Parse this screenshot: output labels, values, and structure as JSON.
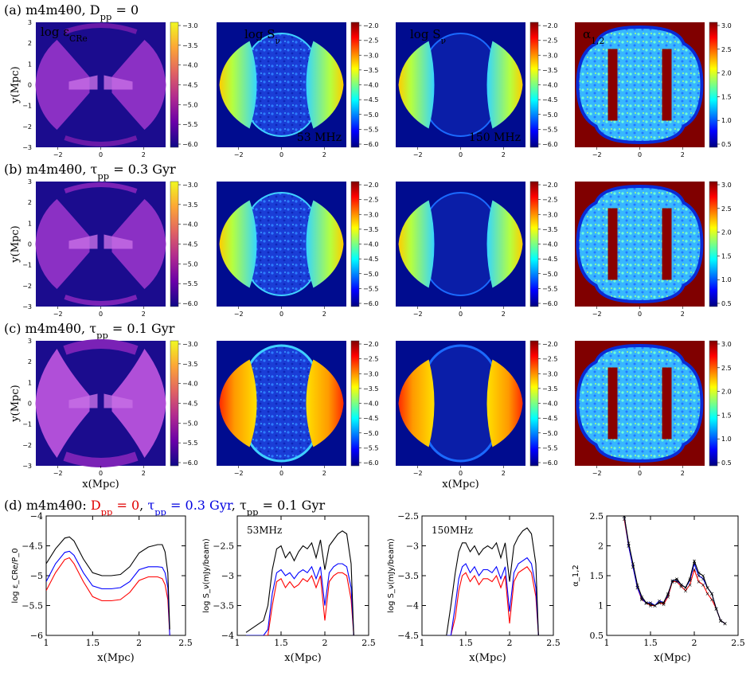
{
  "rows": [
    {
      "label": "(a) m4m4θ0, D",
      "sub": "pp",
      "tail": " = 0"
    },
    {
      "label": "(b) m4m4θ0, τ",
      "sub": "pp",
      "tail": " = 0.3 Gyr"
    },
    {
      "label": "(c) m4m4θ0, τ",
      "sub": "pp",
      "tail": " = 0.1 Gyr"
    }
  ],
  "panel_titles": {
    "eps": "log ε",
    "eps_sub": "CRe",
    "s53": "log S",
    "s150": "log S",
    "s_sub": "ν",
    "alpha": "α",
    "alpha_sub": "1,2",
    "freq53": "53 MHz",
    "freq150": "150 MHz"
  },
  "map_axis": {
    "ylabel": "y(Mpc)",
    "xlabel": "x(Mpc)",
    "xticks": [
      "−2",
      "0",
      "2"
    ],
    "yticks": [
      "3",
      "2",
      "1",
      "0",
      "−1",
      "−2",
      "−3"
    ]
  },
  "colorbars": {
    "eps": [
      "−3.0",
      "−3.5",
      "−4.0",
      "−4.5",
      "−5.0",
      "−5.5",
      "−6.0"
    ],
    "snu": [
      "−2.0",
      "−2.5",
      "−3.0",
      "−3.5",
      "−4.0",
      "−4.5",
      "−5.0",
      "−5.5",
      "−6.0"
    ],
    "alpha": [
      "3.0",
      "2.5",
      "2.0",
      "1.5",
      "1.0",
      "0.5"
    ],
    "colors": {
      "plasma": [
        "#f0f921",
        "#fca636",
        "#e16462",
        "#b12a90",
        "#6a00a8",
        "#0d0887"
      ],
      "jet": [
        "#7f0000",
        "#ff0000",
        "#ffff00",
        "#00ffff",
        "#0000ff",
        "#00007f"
      ]
    }
  },
  "row_d": {
    "prefix": "(d) m4m4θ0: ",
    "red": "D",
    "red_sub": "pp",
    "red_tail": " = 0",
    "blue": "τ",
    "blue_sub": "pp",
    "blue_tail": " = 0.3 Gyr",
    "black": "τ",
    "black_sub": "pp",
    "black_tail": " = 0.1 Gyr",
    "sep": ", "
  },
  "chart_data": [
    {
      "type": "line",
      "title": "",
      "xlabel": "x(Mpc)",
      "ylabel": "log ε_CRe/P_0",
      "xlim": [
        1,
        2.5
      ],
      "ylim": [
        -6,
        -4
      ],
      "xticks": [
        "1",
        "1.5",
        "2",
        "2.5"
      ],
      "yticks": [
        "−4",
        "−4.5",
        "−5",
        "−5.5",
        "−6"
      ],
      "x": [
        1.0,
        1.1,
        1.2,
        1.25,
        1.3,
        1.4,
        1.5,
        1.6,
        1.7,
        1.8,
        1.9,
        2.0,
        2.1,
        2.2,
        2.25,
        2.28,
        2.31,
        2.33
      ],
      "series": [
        {
          "name": "τpp = 0.1 Gyr",
          "color": "#000000",
          "values": [
            -4.8,
            -4.55,
            -4.37,
            -4.35,
            -4.42,
            -4.72,
            -4.95,
            -5.0,
            -5.0,
            -4.98,
            -4.85,
            -4.62,
            -4.52,
            -4.48,
            -4.48,
            -4.6,
            -4.95,
            -5.9
          ]
        },
        {
          "name": "τpp = 0.3 Gyr",
          "color": "#0000ff",
          "values": [
            -5.1,
            -4.8,
            -4.61,
            -4.59,
            -4.66,
            -4.95,
            -5.17,
            -5.22,
            -5.22,
            -5.2,
            -5.1,
            -4.9,
            -4.85,
            -4.85,
            -4.86,
            -4.95,
            -5.2,
            -6.0
          ]
        },
        {
          "name": "Dpp = 0",
          "color": "#ff0000",
          "values": [
            -5.25,
            -4.95,
            -4.73,
            -4.7,
            -4.8,
            -5.1,
            -5.35,
            -5.42,
            -5.42,
            -5.4,
            -5.28,
            -5.08,
            -5.02,
            -5.02,
            -5.05,
            -5.15,
            -5.4,
            -6.0
          ]
        }
      ]
    },
    {
      "type": "line",
      "title": "53MHz",
      "xlabel": "x(Mpc)",
      "ylabel": "log S_ν(mJy/beam)",
      "xlim": [
        1,
        2.5
      ],
      "ylim": [
        -4,
        -2
      ],
      "xticks": [
        "1",
        "1.5",
        "2",
        "2.5"
      ],
      "yticks": [
        "−2.5",
        "−3",
        "−3.5",
        "−4"
      ],
      "x": [
        1.1,
        1.2,
        1.3,
        1.35,
        1.4,
        1.45,
        1.5,
        1.55,
        1.6,
        1.65,
        1.7,
        1.75,
        1.8,
        1.85,
        1.9,
        1.95,
        2.0,
        2.05,
        2.1,
        2.15,
        2.2,
        2.25,
        2.3,
        2.33
      ],
      "series": [
        {
          "name": "τpp = 0.1 Gyr",
          "color": "#000000",
          "values": [
            -3.95,
            -3.85,
            -3.75,
            -3.5,
            -2.9,
            -2.55,
            -2.5,
            -2.7,
            -2.6,
            -2.75,
            -2.6,
            -2.5,
            -2.55,
            -2.45,
            -2.7,
            -2.4,
            -2.9,
            -2.5,
            -2.4,
            -2.3,
            -2.25,
            -2.3,
            -2.8,
            -4.0
          ]
        },
        {
          "name": "τpp = 0.3 Gyr",
          "color": "#0000ff",
          "values": [
            -4.0,
            -4.0,
            -4.0,
            -3.9,
            -3.3,
            -2.95,
            -2.9,
            -3.0,
            -2.95,
            -3.05,
            -2.95,
            -2.9,
            -2.95,
            -2.85,
            -3.05,
            -2.85,
            -3.5,
            -2.95,
            -2.85,
            -2.8,
            -2.8,
            -2.85,
            -3.2,
            -4.0
          ]
        },
        {
          "name": "Dpp = 0",
          "color": "#ff0000",
          "values": [
            -4.0,
            -4.0,
            -4.0,
            -4.0,
            -3.5,
            -3.1,
            -3.05,
            -3.2,
            -3.1,
            -3.2,
            -3.15,
            -3.05,
            -3.1,
            -3.0,
            -3.2,
            -3.0,
            -3.75,
            -3.1,
            -3.0,
            -2.95,
            -2.95,
            -3.0,
            -3.4,
            -4.0
          ]
        }
      ]
    },
    {
      "type": "line",
      "title": "150MHz",
      "xlabel": "x(Mpc)",
      "ylabel": "log S_ν(mJy/beam)",
      "xlim": [
        1,
        2.5
      ],
      "ylim": [
        -4.5,
        -2.5
      ],
      "xticks": [
        "1",
        "1.5",
        "2",
        "2.5"
      ],
      "yticks": [
        "−2.5",
        "−3",
        "−3.5",
        "−4",
        "−4.5"
      ],
      "x": [
        1.28,
        1.33,
        1.38,
        1.42,
        1.46,
        1.5,
        1.55,
        1.6,
        1.65,
        1.7,
        1.75,
        1.8,
        1.85,
        1.9,
        1.95,
        2.0,
        2.05,
        2.1,
        2.15,
        2.2,
        2.25,
        2.3,
        2.33
      ],
      "series": [
        {
          "name": "τpp = 0.1 Gyr",
          "color": "#000000",
          "values": [
            -4.5,
            -4.0,
            -3.45,
            -3.1,
            -2.95,
            -2.95,
            -3.1,
            -3.0,
            -3.15,
            -3.05,
            -3.0,
            -3.05,
            -2.95,
            -3.2,
            -2.95,
            -3.6,
            -3.0,
            -2.85,
            -2.75,
            -2.7,
            -2.8,
            -3.3,
            -4.5
          ]
        },
        {
          "name": "τpp = 0.3 Gyr",
          "color": "#0000ff",
          "values": [
            -4.5,
            -4.5,
            -4.0,
            -3.55,
            -3.35,
            -3.3,
            -3.45,
            -3.35,
            -3.5,
            -3.4,
            -3.4,
            -3.45,
            -3.35,
            -3.55,
            -3.35,
            -4.1,
            -3.45,
            -3.3,
            -3.25,
            -3.2,
            -3.3,
            -3.7,
            -4.5
          ]
        },
        {
          "name": "Dpp = 0",
          "color": "#ff0000",
          "values": [
            -4.5,
            -4.5,
            -4.2,
            -3.75,
            -3.5,
            -3.45,
            -3.6,
            -3.5,
            -3.65,
            -3.55,
            -3.55,
            -3.6,
            -3.5,
            -3.7,
            -3.5,
            -4.3,
            -3.6,
            -3.45,
            -3.4,
            -3.35,
            -3.45,
            -3.85,
            -4.5
          ]
        }
      ]
    },
    {
      "type": "line",
      "title": "",
      "xlabel": "x(Mpc)",
      "ylabel": "α_1,2",
      "xlim": [
        1,
        2.5
      ],
      "ylim": [
        0.5,
        2.5
      ],
      "xticks": [
        "1",
        "1.5",
        "2",
        "2.5"
      ],
      "yticks": [
        "2.5",
        "2",
        "1.5",
        "1",
        "0.5"
      ],
      "x": [
        1.2,
        1.25,
        1.3,
        1.35,
        1.4,
        1.45,
        1.5,
        1.55,
        1.6,
        1.65,
        1.7,
        1.75,
        1.8,
        1.85,
        1.9,
        1.95,
        2.0,
        2.05,
        2.1,
        2.15,
        2.2,
        2.25,
        2.3,
        2.35
      ],
      "series": [
        {
          "name": "τpp = 0.1 Gyr",
          "color": "#000000",
          "values": [
            2.5,
            2.05,
            1.7,
            1.35,
            1.15,
            1.05,
            1.02,
            1.0,
            1.05,
            1.05,
            1.2,
            1.4,
            1.45,
            1.35,
            1.3,
            1.45,
            1.75,
            1.55,
            1.5,
            1.3,
            1.2,
            0.95,
            0.75,
            0.7
          ]
        },
        {
          "name": "τpp = 0.3 Gyr",
          "color": "#0000ff",
          "values": [
            2.5,
            2.0,
            1.65,
            1.3,
            1.12,
            1.04,
            1.05,
            1.0,
            1.08,
            1.05,
            1.18,
            1.42,
            1.42,
            1.35,
            1.3,
            1.42,
            1.7,
            1.5,
            1.45,
            1.3,
            1.2,
            0.95,
            0.75,
            0.7
          ]
        },
        {
          "name": "Dpp = 0",
          "color": "#ff0000",
          "values": [
            2.45,
            2.0,
            1.65,
            1.3,
            1.1,
            1.05,
            1.0,
            1.0,
            1.05,
            1.02,
            1.15,
            1.4,
            1.4,
            1.32,
            1.25,
            1.35,
            1.6,
            1.4,
            1.35,
            1.2,
            1.1,
            0.95,
            0.75,
            0.7
          ]
        }
      ]
    }
  ]
}
